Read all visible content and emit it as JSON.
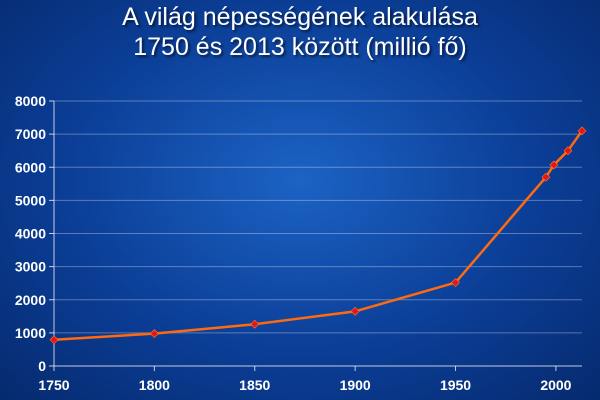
{
  "chart_data": {
    "type": "line",
    "title_lines": [
      "A világ népességének alakulása",
      "1750 és 2013 között (millió fő)"
    ],
    "xlabel": "",
    "ylabel": "",
    "xlim": [
      1750,
      2013
    ],
    "ylim": [
      0,
      8000
    ],
    "x_ticks": [
      1750,
      1800,
      1850,
      1900,
      1950,
      2000
    ],
    "y_ticks": [
      0,
      1000,
      2000,
      3000,
      4000,
      5000,
      6000,
      7000,
      8000
    ],
    "grid": true,
    "legend": "none",
    "series": [
      {
        "x": [
          1750,
          1800,
          1850,
          1900,
          1950,
          1995,
          1999,
          2006,
          2013
        ],
        "y": [
          791,
          978,
          1262,
          1650,
          2519,
          5700,
          6070,
          6500,
          7100
        ],
        "line_color": "#ff6a10",
        "marker_color": "#e8141c"
      }
    ]
  }
}
